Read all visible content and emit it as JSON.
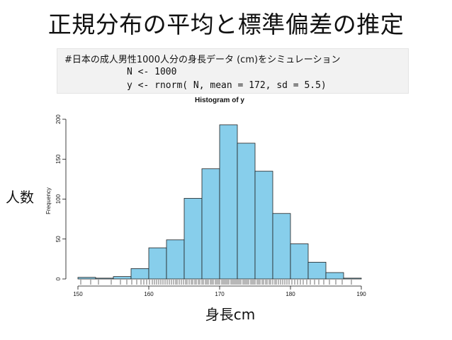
{
  "slide": {
    "title": "正規分布の平均と標準偏差の推定"
  },
  "code": {
    "comment": "#日本の成人男性1000人分の身長データ (cm)をシミュレーション",
    "line1": "N <- 1000",
    "line2": "y <- rnorm( N, mean = 172, sd = 5.5)"
  },
  "annotations": {
    "y_axis": "人数",
    "x_axis": "身長cm"
  },
  "colors": {
    "bar_fill": "#87ceeb",
    "bar_stroke": "#222222"
  },
  "chart_data": {
    "type": "bar",
    "title": "Histogram of y",
    "xlabel": "",
    "ylabel": "Frequency",
    "xlim": [
      150,
      190
    ],
    "ylim": [
      0,
      200
    ],
    "x_ticks": [
      "150",
      "160",
      "170",
      "180",
      "190"
    ],
    "y_ticks": [
      "0",
      "50",
      "100",
      "150",
      "200"
    ],
    "bins": [
      {
        "from": 150,
        "to": 152.5,
        "count": 2
      },
      {
        "from": 152.5,
        "to": 155,
        "count": 1
      },
      {
        "from": 155,
        "to": 157.5,
        "count": 3
      },
      {
        "from": 157.5,
        "to": 160,
        "count": 13
      },
      {
        "from": 160,
        "to": 162.5,
        "count": 39
      },
      {
        "from": 162.5,
        "to": 165,
        "count": 49
      },
      {
        "from": 165,
        "to": 167.5,
        "count": 101
      },
      {
        "from": 167.5,
        "to": 170,
        "count": 138
      },
      {
        "from": 170,
        "to": 172.5,
        "count": 193
      },
      {
        "from": 172.5,
        "to": 175,
        "count": 170
      },
      {
        "from": 175,
        "to": 177.5,
        "count": 135
      },
      {
        "from": 177.5,
        "to": 180,
        "count": 82
      },
      {
        "from": 180,
        "to": 182.5,
        "count": 44
      },
      {
        "from": 182.5,
        "to": 185,
        "count": 21
      },
      {
        "from": 185,
        "to": 187.5,
        "count": 8
      },
      {
        "from": 187.5,
        "to": 190,
        "count": 1
      }
    ],
    "rug": [
      150.4,
      151.8,
      152.9,
      154.7,
      156.0,
      156.9,
      157.6,
      158.3,
      158.9,
      159.3,
      159.7,
      160.1,
      160.5,
      160.8,
      161.1,
      161.4,
      161.7,
      162.0,
      162.3,
      162.6,
      162.9,
      163.2,
      163.5,
      163.8,
      164.0,
      164.3,
      164.6,
      164.9,
      165.2,
      165.4,
      165.7,
      166.0,
      166.2,
      166.5,
      166.7,
      167.0,
      167.2,
      167.5,
      167.7,
      168.0,
      168.2,
      168.4,
      168.7,
      168.9,
      169.1,
      169.4,
      169.6,
      169.8,
      170.0,
      170.3,
      170.5,
      170.7,
      170.9,
      171.1,
      171.3,
      171.6,
      171.8,
      172.0,
      172.2,
      172.4,
      172.6,
      172.8,
      173.0,
      173.3,
      173.5,
      173.7,
      173.9,
      174.1,
      174.4,
      174.6,
      174.8,
      175.0,
      175.3,
      175.5,
      175.7,
      176.0,
      176.2,
      176.5,
      176.7,
      177.0,
      177.2,
      177.5,
      177.8,
      178.0,
      178.3,
      178.6,
      178.9,
      179.2,
      179.5,
      179.8,
      180.2,
      180.6,
      181.0,
      181.4,
      181.8,
      182.3,
      182.8,
      183.4,
      184.0,
      184.7,
      185.5,
      186.4,
      187.3,
      188.6
    ]
  }
}
